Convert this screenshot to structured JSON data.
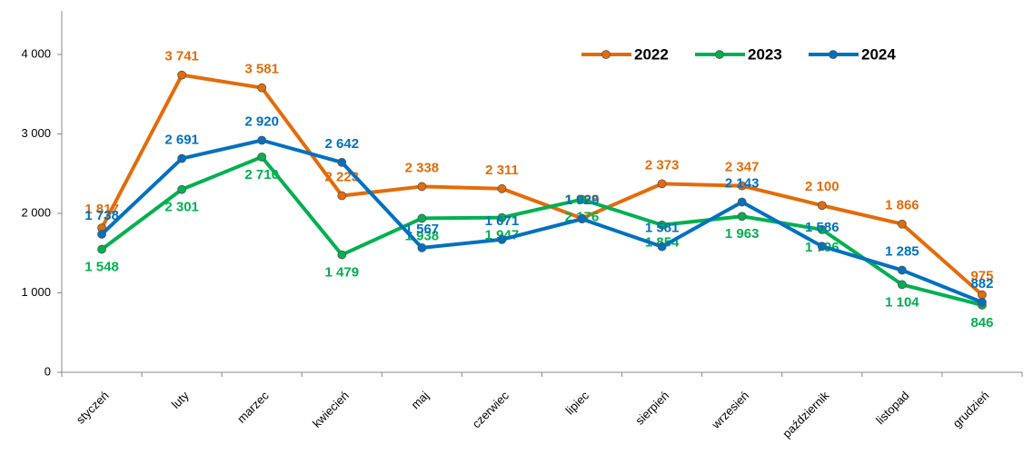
{
  "chart_data": {
    "type": "line",
    "categories": [
      "styczeń",
      "luty",
      "marzec",
      "kwiecień",
      "maj",
      "czerwiec",
      "lipiec",
      "sierpień",
      "wrzesień",
      "październik",
      "listopad",
      "grudzień"
    ],
    "series": [
      {
        "name": "2022",
        "color": "#e36c0a",
        "values": [
          1817,
          3741,
          3581,
          2223,
          2338,
          2311,
          1938,
          2373,
          2347,
          2100,
          1866,
          975
        ],
        "value_labels": [
          "1 817",
          "3 741",
          "3 581",
          "2 223",
          "2 338",
          "2 311",
          "1 938",
          "2 373",
          "2 347",
          "2 100",
          "1 866",
          "975"
        ]
      },
      {
        "name": "2023",
        "color": "#00b050",
        "values": [
          1548,
          2301,
          2710,
          1479,
          1938,
          1947,
          2176,
          1854,
          1963,
          1796,
          1104,
          846
        ],
        "value_labels": [
          "1 548",
          "2 301",
          "2 710",
          "1 479",
          "1 938",
          "1 947",
          "2 176",
          "1 854",
          "1 963",
          "1 796",
          "1 104",
          "846"
        ]
      },
      {
        "name": "2024",
        "color": "#0070c0",
        "values": [
          1738,
          2691,
          2920,
          2642,
          1567,
          1671,
          1929,
          1581,
          2143,
          1586,
          1285,
          882
        ],
        "value_labels": [
          "1 738",
          "2 691",
          "2 920",
          "2 642",
          "1 567",
          "1 671",
          "1 929",
          "1 581",
          "2 143",
          "1 586",
          "1 285",
          "882"
        ]
      }
    ],
    "ylim": [
      0,
      4000
    ],
    "yticks": [
      0,
      {
        "value": 1000,
        "label": "1 000"
      },
      {
        "value": 2000,
        "label": "2 000"
      },
      {
        "value": 3000,
        "label": "3 000"
      },
      {
        "value": 4000,
        "label": "4 000"
      }
    ],
    "legend": "top-right"
  }
}
